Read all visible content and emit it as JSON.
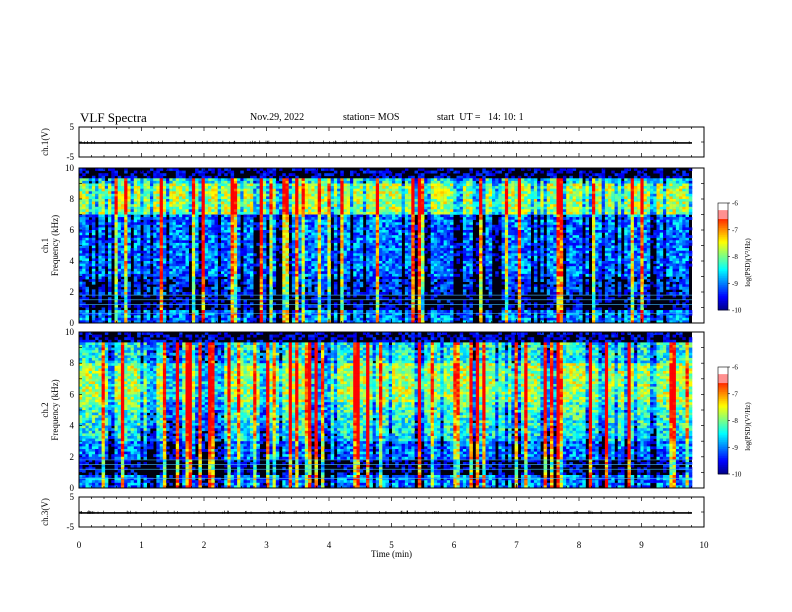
{
  "header": {
    "title": "VLF Spectra",
    "date": "Nov.29, 2022",
    "station": "station= MOS",
    "start": "start  UT =   14: 10: 1"
  },
  "chart_data": [
    {
      "type": "line",
      "panel": "ch1-waveform",
      "ylabel": "ch.1(V)",
      "ylim": [
        -5,
        5
      ],
      "yticks": [
        "5",
        "-5"
      ],
      "series": [
        {
          "values": [
            0,
            0,
            0,
            0,
            0,
            0,
            0,
            0,
            0,
            0,
            0
          ]
        }
      ],
      "x": [
        0,
        1,
        2,
        3,
        4,
        5,
        6,
        7,
        8,
        9,
        9.8
      ]
    },
    {
      "type": "heatmap",
      "panel": "ch1-spectrogram",
      "ylabel": "ch.1\nFrequency (kHz)",
      "ylim": [
        0,
        10
      ],
      "yticks": [
        "0",
        "2",
        "4",
        "6",
        "8",
        "10"
      ],
      "colorbar": {
        "label": "log(PSD)(V²/Hz)",
        "range": [
          -10,
          -6
        ],
        "ticks": [
          "-6",
          "-7",
          "-8",
          "-9",
          "-10"
        ]
      },
      "peak_band_khz": [
        7,
        9
      ],
      "x_extent_min": [
        0,
        9.8
      ]
    },
    {
      "type": "heatmap",
      "panel": "ch2-spectrogram",
      "ylabel": "ch.2\nFrequency (kHz)",
      "ylim": [
        0,
        10
      ],
      "yticks": [
        "0",
        "2",
        "4",
        "6",
        "8",
        "10"
      ],
      "colorbar": {
        "label": "log(PSD)(V²/Hz)",
        "range": [
          -10,
          -6
        ],
        "ticks": [
          "-6",
          "-7",
          "-8",
          "-9",
          "-10"
        ]
      },
      "peak_band_khz": [
        5.5,
        8
      ],
      "x_extent_min": [
        0,
        9.8
      ]
    },
    {
      "type": "line",
      "panel": "ch3-waveform",
      "ylabel": "ch.3(V)",
      "ylim": [
        -5,
        5
      ],
      "yticks": [
        "5",
        "-5"
      ],
      "series": [
        {
          "values": [
            0,
            0,
            0,
            0,
            0,
            0,
            0,
            0,
            0,
            0,
            0
          ]
        }
      ],
      "x": [
        0,
        1,
        2,
        3,
        4,
        5,
        6,
        7,
        8,
        9,
        9.8
      ]
    }
  ],
  "xaxis": {
    "label": "Time  (min)",
    "range": [
      0,
      10
    ],
    "ticks": [
      "0",
      "1",
      "2",
      "3",
      "4",
      "5",
      "6",
      "7",
      "8",
      "9",
      "10"
    ]
  },
  "colors": {
    "colormap": [
      "#00007f",
      "#0000ff",
      "#0080ff",
      "#00ffff",
      "#80ff80",
      "#ffff00",
      "#ff8000",
      "#ff0000",
      "#ffffff"
    ]
  }
}
